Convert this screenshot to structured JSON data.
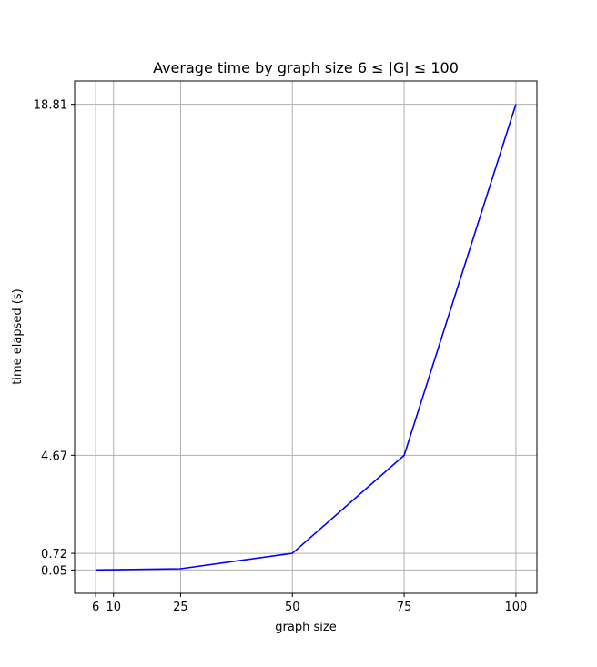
{
  "chart_data": {
    "type": "line",
    "title": "Average time by graph size 6 ≤ |G| ≤ 100",
    "xlabel": "graph size",
    "ylabel": "time elapsed (s)",
    "x": [
      6,
      10,
      25,
      50,
      75,
      100
    ],
    "xticks": [
      6,
      10,
      25,
      50,
      75,
      100
    ],
    "xtick_labels": [
      "6",
      "10",
      "25",
      "50",
      "75",
      "100"
    ],
    "yticks": [
      0.05,
      0.72,
      4.67,
      18.81
    ],
    "ytick_labels": [
      "0.05",
      "0.72",
      "4.67",
      "18.81"
    ],
    "series": [
      {
        "values": [
          0.05,
          0.06,
          0.1,
          0.72,
          4.67,
          18.81
        ],
        "color": "#0000ff"
      }
    ],
    "xlim": [
      1.3,
      104.7
    ],
    "ylim": [
      -0.89,
      19.75
    ],
    "grid": true,
    "grid_color": "#b0b0b0"
  }
}
